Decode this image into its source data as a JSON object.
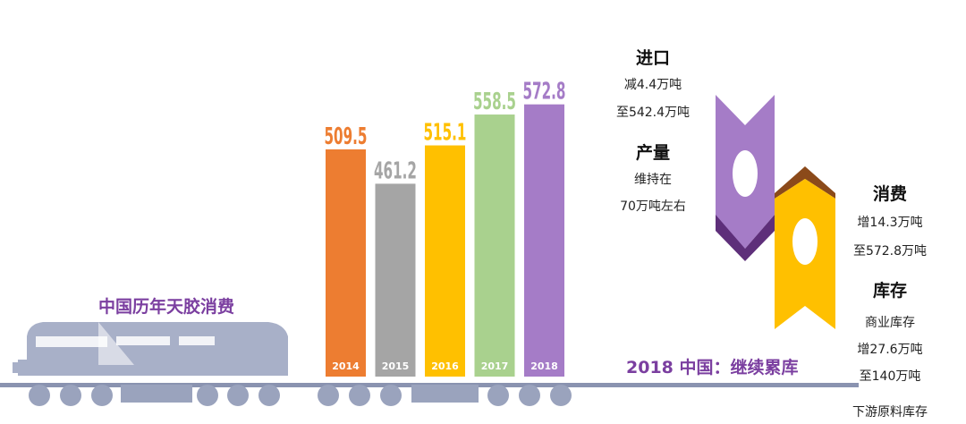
{
  "chart_data": {
    "type": "bar",
    "title": "中国历年天胶消费",
    "categories": [
      "2014",
      "2015",
      "2016",
      "2017",
      "2018"
    ],
    "values": [
      509.5,
      461.2,
      515.1,
      558.5,
      572.8
    ],
    "value_labels": [
      "509.5",
      "461.2",
      "515.1",
      "558.5",
      "572.8"
    ],
    "colors": [
      "#ed7d31",
      "#a5a5a5",
      "#ffc000",
      "#a9d18e",
      "#a57cc7"
    ],
    "ylim": [
      0,
      600
    ]
  },
  "headline": "2018 中国：继续累库",
  "panels": {
    "import": {
      "title": "进口",
      "line1": "减4.4万吨",
      "line2": "至542.4万吨"
    },
    "production": {
      "title": "产量",
      "line1": "维持在",
      "line2": "70万吨左右"
    },
    "consumption": {
      "title": "消费",
      "line1": "增14.3万吨",
      "line2": "至572.8万吨"
    },
    "inventory": {
      "title": "库存",
      "line1": "商业库存",
      "line2": "增27.6万吨",
      "line3": "至140万吨",
      "line4": "下游原料库存"
    }
  },
  "colors": {
    "accent_purple": "#7b3fa0",
    "train": "#a8b0c8",
    "track": "#8a93b0",
    "purple_shape": "#a57cc7",
    "purple_shadow": "#5e2f7a",
    "yellow_shape": "#ffc000",
    "yellow_shadow": "#8b4a1a"
  }
}
